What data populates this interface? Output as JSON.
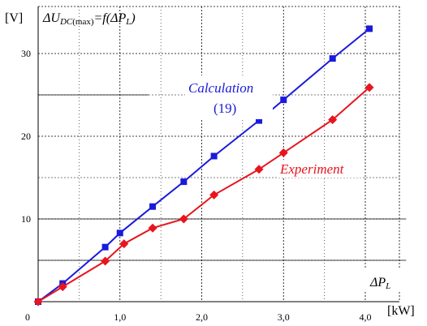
{
  "chart_data": {
    "type": "line",
    "title": "",
    "xlabel": "",
    "ylabel": "",
    "x_unit": "[kW]",
    "y_unit": "[V]",
    "xlim": [
      0,
      4.5
    ],
    "ylim": [
      0,
      34
    ],
    "x_ticks": [
      {
        "value": 0,
        "label": "0"
      },
      {
        "value": 1,
        "label": "1,0"
      },
      {
        "value": 2,
        "label": "2,0"
      },
      {
        "value": 3,
        "label": "3,0"
      },
      {
        "value": 4,
        "label": "4,0"
      }
    ],
    "y_ticks": [
      {
        "value": 10,
        "label": "10"
      },
      {
        "value": 20,
        "label": "20"
      },
      {
        "value": 30,
        "label": "30"
      }
    ],
    "grid": true,
    "annotations": {
      "function_label": {
        "prefix": "ΔU",
        "subscript_italic": "DC",
        "subscript_normal": "(max)",
        "suffix": "=f(ΔP",
        "suffix_subscript": "L",
        "suffix_end": ")"
      },
      "x_axis_symbol": {
        "prefix": "ΔP",
        "subscript": "L"
      }
    },
    "series": [
      {
        "name": "Calculation",
        "name_line2": "(19)",
        "color": "#1a1adb",
        "marker": "square",
        "points": [
          [
            0.0,
            0.0
          ],
          [
            0.3,
            2.2
          ],
          [
            0.82,
            6.6
          ],
          [
            1.0,
            8.3
          ],
          [
            1.4,
            11.5
          ],
          [
            1.78,
            14.5
          ],
          [
            2.15,
            17.6
          ],
          [
            2.7,
            21.9
          ],
          [
            3.0,
            24.4
          ],
          [
            3.6,
            29.4
          ],
          [
            4.05,
            33.0
          ]
        ]
      },
      {
        "name": "Experiment",
        "color": "#e8141e",
        "marker": "diamond",
        "points": [
          [
            0.0,
            0.0
          ],
          [
            0.3,
            1.8
          ],
          [
            0.82,
            4.9
          ],
          [
            1.05,
            7.0
          ],
          [
            1.4,
            8.9
          ],
          [
            1.78,
            10.0
          ],
          [
            2.15,
            12.9
          ],
          [
            2.7,
            16.0
          ],
          [
            3.0,
            18.0
          ],
          [
            3.6,
            22.0
          ],
          [
            4.05,
            25.9
          ]
        ]
      }
    ]
  }
}
